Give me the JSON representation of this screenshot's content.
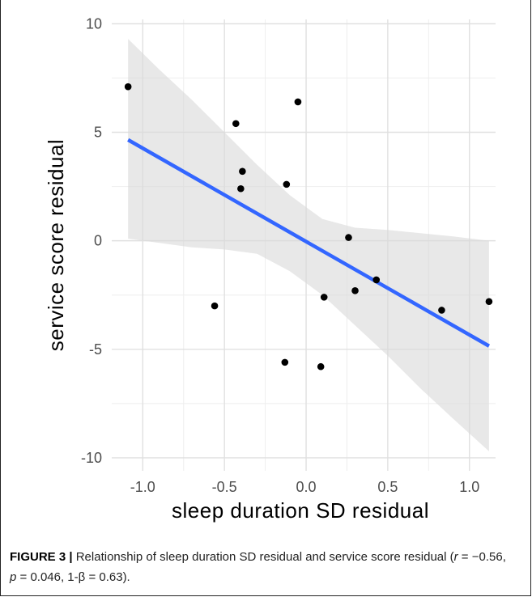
{
  "chart_data": {
    "type": "scatter",
    "xlabel": "sleep  duration  SD  residual",
    "ylabel": "service  score  residual",
    "xlim": [
      -1.19,
      1.16
    ],
    "ylim": [
      -10.6,
      10.2
    ],
    "xticks": [
      -1.0,
      -0.5,
      0.0,
      0.5,
      1.0
    ],
    "xtick_labels": [
      "-1.0",
      "-0.5",
      "0.0",
      "0.5",
      "1.0"
    ],
    "yticks": [
      -10,
      -5,
      0,
      5,
      10
    ],
    "ytick_labels": [
      "-10",
      "-5",
      "0",
      "5",
      "10"
    ],
    "grid": true,
    "points": [
      {
        "x": -1.09,
        "y": 7.1
      },
      {
        "x": -0.56,
        "y": -3.0
      },
      {
        "x": -0.43,
        "y": 5.4
      },
      {
        "x": -0.39,
        "y": 3.2
      },
      {
        "x": -0.4,
        "y": 2.4
      },
      {
        "x": -0.12,
        "y": 2.6
      },
      {
        "x": -0.13,
        "y": -5.6
      },
      {
        "x": -0.05,
        "y": 6.4
      },
      {
        "x": 0.09,
        "y": -5.8
      },
      {
        "x": 0.11,
        "y": -2.6
      },
      {
        "x": 0.26,
        "y": 0.15
      },
      {
        "x": 0.3,
        "y": -2.3
      },
      {
        "x": 0.43,
        "y": -1.8
      },
      {
        "x": 0.83,
        "y": -3.2
      },
      {
        "x": 1.12,
        "y": -2.8
      }
    ],
    "fit_line": {
      "x": [
        -1.09,
        1.12
      ],
      "y": [
        4.65,
        -4.85
      ]
    },
    "confidence_band": {
      "x": [
        -1.09,
        -0.9,
        -0.7,
        -0.5,
        -0.3,
        -0.1,
        0.1,
        0.3,
        0.5,
        0.7,
        0.9,
        1.12
      ],
      "upper": [
        9.3,
        7.9,
        6.5,
        5.0,
        3.5,
        2.1,
        1.0,
        0.6,
        0.5,
        0.35,
        0.2,
        0.0
      ],
      "lower": [
        0.1,
        -0.1,
        -0.3,
        -0.4,
        -0.6,
        -1.4,
        -2.5,
        -3.9,
        -5.3,
        -6.8,
        -8.2,
        -9.7
      ]
    },
    "colors": {
      "panel": "#ffffff",
      "grid_major": "#e0e0e0",
      "grid_minor": "#eeeeee",
      "band": "#d9d9d9",
      "line": "#3366ff",
      "point": "#000000"
    }
  },
  "caption": {
    "label": "FIGURE 3 |",
    "text_before_r": " Relationship of sleep duration SD residual and service score residual (",
    "r_symbol": "r",
    "r_rest": " = −0.56, ",
    "p_symbol": "p",
    "p_rest": " = 0.046, 1-β = 0.63)."
  }
}
